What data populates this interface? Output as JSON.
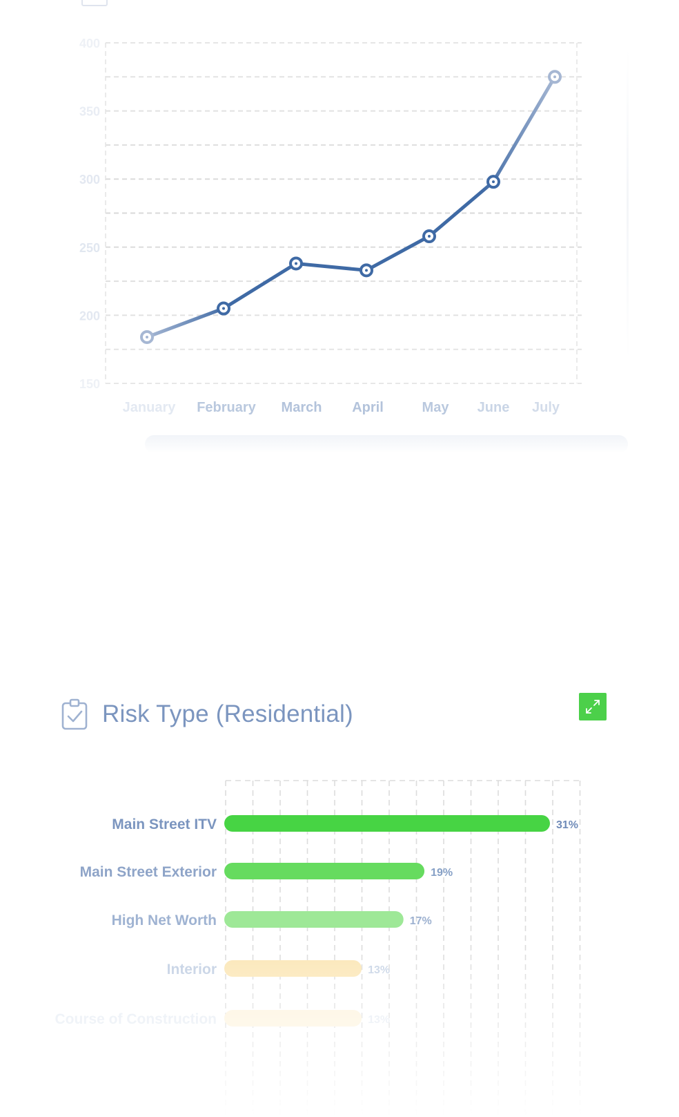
{
  "line_card": {
    "title": ""
  },
  "risk_card": {
    "title": "Risk Type (Residential)",
    "expand_icon": "expand-arrows-icon",
    "clipboard_icon": "clipboard-check-icon"
  },
  "colors": {
    "line_series": "#3f6aa5",
    "line_series_faded": "#a6b7d3",
    "grid": "#dddddd",
    "accent_green": "#4cd04a",
    "bar_label": "#7b95bf",
    "expand_button": "#4cd04a"
  },
  "chart_data": [
    {
      "type": "line",
      "title": "",
      "xlabel": "",
      "ylabel": "",
      "categories": [
        "January",
        "February",
        "March",
        "April",
        "May",
        "June",
        "July"
      ],
      "series": [
        {
          "values": [
            184,
            205,
            238,
            233,
            258,
            298,
            375
          ]
        }
      ],
      "yticks": [
        "400",
        "350",
        "300",
        "250",
        "200",
        "150"
      ],
      "ylim": [
        150,
        400
      ],
      "grid": true,
      "legend": "none"
    },
    {
      "type": "bar",
      "orientation": "horizontal",
      "title": "Risk Type (Residential)",
      "categories": [
        "Main Street ITV",
        "Main Street Exterior",
        "High Net Worth",
        "Interior",
        "Course of Construction"
      ],
      "values": [
        31,
        19,
        17,
        13,
        13
      ],
      "value_labels": [
        "31%",
        "19%",
        "17%",
        "13%",
        "13%"
      ],
      "bar_colors": [
        "#47d444",
        "#66db5f",
        "#9ee897",
        "#fbe7b8",
        "#fdf3dc"
      ],
      "xlim": [
        0,
        33
      ],
      "grid": true
    }
  ]
}
